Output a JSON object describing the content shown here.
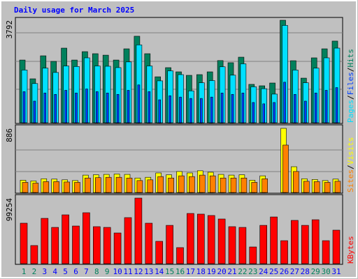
{
  "chart_data": [
    {
      "type": "bar",
      "title": "Daily usage for March 2025",
      "ylim": [
        0,
        3792
      ],
      "yticks": [
        3792
      ],
      "series": [
        {
          "name": "Hits",
          "color": "#00805c",
          "values": [
            2320,
            1625,
            2476,
            2270,
            2760,
            2320,
            2630,
            2554,
            2500,
            2320,
            2734,
            3200,
            2554,
            1700,
            2038,
            1883,
            1754,
            1780,
            1883,
            2300,
            2220,
            2425,
            1420,
            1367,
            1470,
            3792,
            2295,
            1650,
            2400,
            2734,
            3020
          ]
        },
        {
          "name": "Files",
          "color": "#0040ff",
          "values": [
            1150,
            800,
            1100,
            1050,
            1200,
            1100,
            1250,
            1150,
            1100,
            1050,
            1200,
            1400,
            1150,
            850,
            1000,
            950,
            900,
            900,
            950,
            1100,
            1050,
            1100,
            750,
            700,
            750,
            1500,
            1050,
            800,
            1100,
            1200,
            1300
          ]
        },
        {
          "name": "Pages",
          "color": "#00e0ff",
          "values": [
            1950,
            1450,
            2020,
            1860,
            2100,
            2080,
            2400,
            2100,
            2090,
            2040,
            2250,
            2880,
            2100,
            1550,
            1920,
            1780,
            1180,
            1480,
            1560,
            2070,
            1760,
            2180,
            1330,
            1260,
            1060,
            3600,
            1950,
            1480,
            2020,
            2400,
            2760
          ]
        }
      ]
    },
    {
      "type": "bar",
      "ylim": [
        0,
        886
      ],
      "yticks": [
        886
      ],
      "series": [
        {
          "name": "Visits",
          "color": "#ffff00",
          "values": [
            170,
            160,
            190,
            185,
            175,
            165,
            240,
            245,
            250,
            255,
            250,
            200,
            210,
            270,
            245,
            290,
            270,
            300,
            280,
            250,
            240,
            245,
            170,
            230,
            0,
            886,
            356,
            190,
            180,
            165,
            185
          ]
        },
        {
          "name": "Sites",
          "color": "#ff8000",
          "values": [
            140,
            130,
            150,
            150,
            145,
            140,
            200,
            205,
            210,
            210,
            200,
            165,
            175,
            220,
            200,
            230,
            220,
            240,
            230,
            200,
            200,
            200,
            140,
            190,
            0,
            655,
            290,
            155,
            150,
            140,
            155
          ]
        }
      ]
    },
    {
      "type": "bar",
      "ylim": [
        0,
        99254
      ],
      "yticks": [
        99254
      ],
      "categories": [
        "1",
        "2",
        "3",
        "4",
        "5",
        "6",
        "7",
        "8",
        "9",
        "10",
        "11",
        "12",
        "13",
        "14",
        "15",
        "16",
        "17",
        "18",
        "19",
        "20",
        "21",
        "22",
        "23",
        "24",
        "25",
        "26",
        "27",
        "28",
        "29",
        "30",
        "31"
      ],
      "weekend_color": "#00805c",
      "weekday_color": "#0000ff",
      "weekends": [
        0,
        1,
        7,
        8,
        14,
        15,
        21,
        22,
        28,
        29
      ],
      "series": [
        {
          "name": "KBytes",
          "color": "#ff0000",
          "values": [
            61250,
            27450,
            68600,
            54900,
            73900,
            57000,
            77100,
            56000,
            54900,
            46460,
            69700,
            99254,
            61250,
            33800,
            58000,
            24300,
            76000,
            75000,
            72900,
            67600,
            56000,
            54900,
            25300,
            58000,
            70700,
            34800,
            65500,
            58000,
            66500,
            34800,
            50700
          ]
        }
      ]
    }
  ]
}
